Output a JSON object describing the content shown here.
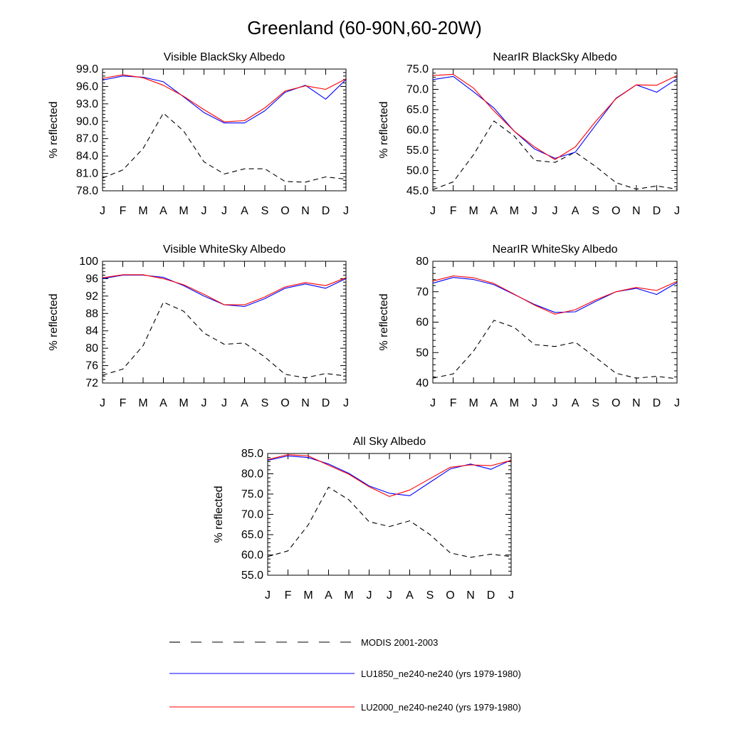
{
  "figure": {
    "title": "Greenland (60-90N,60-20W)"
  },
  "legend": {
    "entries": [
      {
        "label": "MODIS 2001-2003",
        "color": "#000000",
        "dash": "dashed"
      },
      {
        "label": "LU1850_ne240-ne240 (yrs 1979-1980)",
        "color": "#0000ff",
        "dash": "solid"
      },
      {
        "label": "LU2000_ne240-ne240 (yrs 1979-1980)",
        "color": "#ff0000",
        "dash": "solid"
      }
    ]
  },
  "chart_data": [
    {
      "type": "line",
      "title": "Visible BlackSky Albedo",
      "ylabel": "% reflected",
      "xlabel": "",
      "x": [
        "J",
        "F",
        "M",
        "A",
        "M",
        "J",
        "J",
        "A",
        "S",
        "O",
        "N",
        "D",
        "J"
      ],
      "ylim": [
        78.0,
        99.0
      ],
      "yticks": [
        "78.0",
        "81.0",
        "84.0",
        "87.0",
        "90.0",
        "93.0",
        "96.0",
        "99.0"
      ],
      "grid": false,
      "series": [
        {
          "name": "MODIS 2001-2003",
          "color": "#000000",
          "dash": "dashed",
          "values": [
            80.2,
            81.6,
            85.3,
            91.4,
            88.3,
            83.0,
            80.9,
            81.8,
            81.8,
            79.6,
            79.5,
            80.4,
            80.0
          ]
        },
        {
          "name": "LU1850_ne240-ne240 (yrs 1979-1980)",
          "color": "#0000ff",
          "dash": "solid",
          "values": [
            97.1,
            97.8,
            97.6,
            96.8,
            94.2,
            91.5,
            89.7,
            89.7,
            91.8,
            95.0,
            96.2,
            93.8,
            97.2
          ]
        },
        {
          "name": "LU2000_ne240-ne240 (yrs 1979-1980)",
          "color": "#ff0000",
          "dash": "solid",
          "values": [
            97.4,
            98.0,
            97.5,
            96.2,
            94.3,
            92.0,
            89.9,
            90.1,
            92.3,
            95.2,
            96.1,
            95.5,
            97.3
          ]
        }
      ]
    },
    {
      "type": "line",
      "title": "NearIR BlackSky Albedo",
      "ylabel": "% reflected",
      "xlabel": "",
      "x": [
        "J",
        "F",
        "M",
        "A",
        "M",
        "J",
        "J",
        "A",
        "S",
        "O",
        "N",
        "D",
        "J"
      ],
      "ylim": [
        45.0,
        75.0
      ],
      "yticks": [
        "45.0",
        "50.0",
        "55.0",
        "60.0",
        "65.0",
        "70.0",
        "75.0"
      ],
      "grid": false,
      "series": [
        {
          "name": "MODIS 2001-2003",
          "color": "#000000",
          "dash": "dashed",
          "values": [
            45.3,
            47.2,
            53.9,
            62.2,
            58.5,
            52.5,
            52.0,
            54.5,
            51.0,
            47.0,
            45.4,
            46.2,
            45.4
          ]
        },
        {
          "name": "LU1850_ne240-ne240 (yrs 1979-1980)",
          "color": "#0000ff",
          "dash": "solid",
          "values": [
            72.4,
            73.2,
            69.4,
            65.4,
            59.7,
            55.3,
            53.0,
            54.5,
            61.2,
            67.8,
            71.1,
            69.3,
            72.6
          ]
        },
        {
          "name": "LU2000_ne240-ne240 (yrs 1979-1980)",
          "color": "#ff0000",
          "dash": "solid",
          "values": [
            73.4,
            73.7,
            70.3,
            64.7,
            59.7,
            55.8,
            52.7,
            55.8,
            62.1,
            67.7,
            71.1,
            71.0,
            73.4
          ]
        }
      ]
    },
    {
      "type": "line",
      "title": "Visible WhiteSky Albedo",
      "ylabel": "% reflected",
      "xlabel": "",
      "x": [
        "J",
        "F",
        "M",
        "A",
        "M",
        "J",
        "J",
        "A",
        "S",
        "O",
        "N",
        "D",
        "J"
      ],
      "ylim": [
        72,
        100
      ],
      "yticks": [
        "72",
        "76",
        "80",
        "84",
        "88",
        "92",
        "96",
        "100"
      ],
      "grid": false,
      "series": [
        {
          "name": "MODIS 2001-2003",
          "color": "#000000",
          "dash": "dashed",
          "values": [
            73.8,
            75.2,
            80.6,
            90.6,
            88.5,
            83.5,
            80.9,
            81.2,
            78.0,
            74.0,
            73.2,
            74.2,
            73.6
          ]
        },
        {
          "name": "LU1850_ne240-ne240 (yrs 1979-1980)",
          "color": "#0000ff",
          "dash": "solid",
          "values": [
            96.0,
            96.8,
            96.8,
            96.3,
            94.4,
            92.0,
            90.0,
            89.6,
            91.4,
            93.8,
            94.8,
            93.8,
            96.0
          ]
        },
        {
          "name": "LU2000_ne240-ne240 (yrs 1979-1980)",
          "color": "#ff0000",
          "dash": "solid",
          "values": [
            96.2,
            96.9,
            96.9,
            96.0,
            94.6,
            92.4,
            90.0,
            90.0,
            91.8,
            94.1,
            95.1,
            94.4,
            96.2
          ]
        }
      ]
    },
    {
      "type": "line",
      "title": "NearIR WhiteSky Albedo",
      "ylabel": "% reflected",
      "xlabel": "",
      "x": [
        "J",
        "F",
        "M",
        "A",
        "M",
        "J",
        "J",
        "A",
        "S",
        "O",
        "N",
        "D",
        "J"
      ],
      "ylim": [
        40,
        80
      ],
      "yticks": [
        "40",
        "50",
        "60",
        "70",
        "80"
      ],
      "grid": false,
      "series": [
        {
          "name": "MODIS 2001-2003",
          "color": "#000000",
          "dash": "dashed",
          "values": [
            41.6,
            43.0,
            50.5,
            60.6,
            58.3,
            52.6,
            52.0,
            53.4,
            48.4,
            43.2,
            41.6,
            42.2,
            41.4
          ]
        },
        {
          "name": "LU1850_ne240-ne240 (yrs 1979-1980)",
          "color": "#0000ff",
          "dash": "solid",
          "values": [
            72.8,
            74.7,
            74.0,
            72.3,
            69.1,
            65.8,
            63.2,
            63.4,
            66.8,
            70.0,
            71.1,
            69.1,
            73.0
          ]
        },
        {
          "name": "LU2000_ne240-ne240 (yrs 1979-1980)",
          "color": "#ff0000",
          "dash": "solid",
          "values": [
            73.5,
            75.2,
            74.6,
            72.7,
            69.2,
            65.6,
            62.6,
            64.1,
            67.3,
            70.0,
            71.4,
            70.4,
            73.4
          ]
        }
      ]
    },
    {
      "type": "line",
      "title": "All Sky Albedo",
      "ylabel": "% reflected",
      "xlabel": "",
      "x": [
        "J",
        "F",
        "M",
        "A",
        "M",
        "J",
        "J",
        "A",
        "S",
        "O",
        "N",
        "D",
        "J"
      ],
      "ylim": [
        55.0,
        85.0
      ],
      "yticks": [
        "55.0",
        "60.0",
        "65.0",
        "70.0",
        "75.0",
        "80.0",
        "85.0"
      ],
      "grid": false,
      "series": [
        {
          "name": "MODIS 2001-2003",
          "color": "#000000",
          "dash": "dashed",
          "values": [
            59.6,
            61.0,
            67.4,
            76.7,
            73.6,
            68.2,
            67.0,
            68.4,
            65.0,
            60.5,
            59.4,
            60.2,
            59.6
          ]
        },
        {
          "name": "LU1850_ne240-ne240 (yrs 1979-1980)",
          "color": "#0000ff",
          "dash": "solid",
          "values": [
            83.3,
            84.4,
            84.0,
            82.4,
            80.1,
            77.0,
            75.2,
            74.6,
            77.9,
            81.2,
            82.4,
            81.1,
            83.4
          ]
        },
        {
          "name": "LU2000_ne240-ne240 (yrs 1979-1980)",
          "color": "#ff0000",
          "dash": "solid",
          "values": [
            83.5,
            84.7,
            84.4,
            82.1,
            79.9,
            76.8,
            74.4,
            76.0,
            78.8,
            81.6,
            82.2,
            82.0,
            83.3
          ]
        }
      ]
    }
  ]
}
